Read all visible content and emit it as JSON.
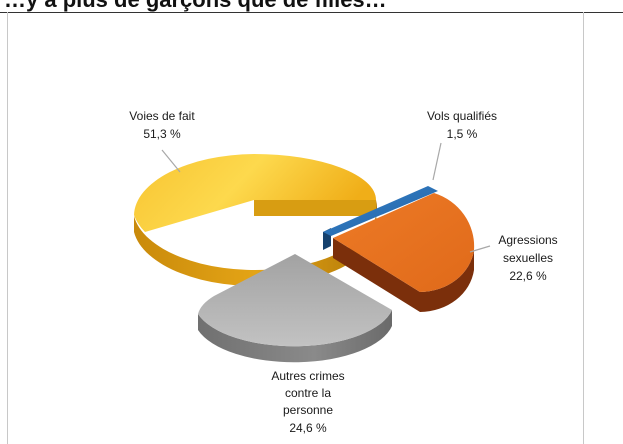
{
  "header": {
    "text": "…y a plus de garçons que de filles…"
  },
  "chart_data": {
    "type": "pie",
    "title": "",
    "style": "3d-exploded",
    "labels_outside": true,
    "slices": [
      {
        "name": "Voies de fait",
        "label": "Voies de fait",
        "value": 51.3,
        "value_label": "51,3 %",
        "color": "#f2b21b"
      },
      {
        "name": "Vols qualifiés",
        "label": "Vols qualifiés",
        "value": 1.5,
        "value_label": "1,5 %",
        "color": "#2a70b8"
      },
      {
        "name": "Agressions sexuelles",
        "label_lines": [
          "Agressions",
          "sexuelles"
        ],
        "value": 22.6,
        "value_label": "22,6 %",
        "color": "#ea7426"
      },
      {
        "name": "Autres crimes contre la personne",
        "label_lines": [
          "Autres crimes",
          "contre  la",
          "personne"
        ],
        "value": 24.6,
        "value_label": "24,6 %",
        "color": "#a6a6a6"
      }
    ]
  }
}
